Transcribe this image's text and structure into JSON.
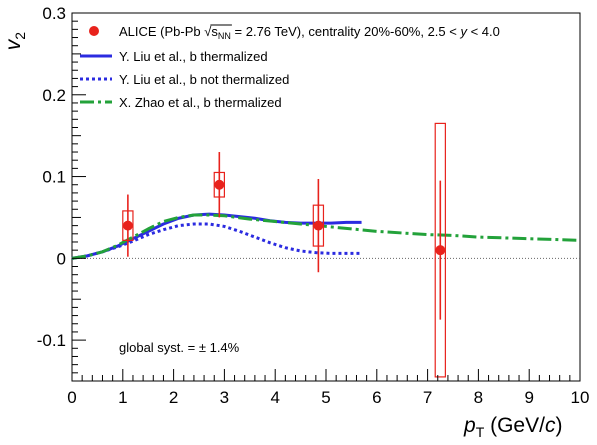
{
  "chart_data": {
    "type": "scatter",
    "title": "",
    "xlabel": "p_T (GeV/c)",
    "ylabel": "v_2",
    "xlim": [
      0,
      10
    ],
    "ylim": [
      -0.15,
      0.3
    ],
    "x_ticks": [
      0,
      1,
      2,
      3,
      4,
      5,
      6,
      7,
      8,
      9,
      10
    ],
    "y_ticks": [
      -0.1,
      0,
      0.1,
      0.2,
      0.3
    ],
    "x_tick_labels": [
      "0",
      "1",
      "2",
      "3",
      "4",
      "5",
      "6",
      "7",
      "8",
      "9",
      "10"
    ],
    "y_tick_labels": [
      "-0.1",
      "0",
      "0.1",
      "0.2",
      "0.3"
    ],
    "grid": false,
    "legend_placement": "top",
    "zero_line": true,
    "data_series": {
      "name": "ALICE (Pb-Pb √sNN = 2.76 TeV), centrality 20%-60%, 2.5 < y < 4.0",
      "color": "#e8221c",
      "points": [
        {
          "x": 1.1,
          "y": 0.04,
          "stat_err": 0.038,
          "syst_err": 0.018,
          "x_halfwidth": 0.1
        },
        {
          "x": 2.9,
          "y": 0.09,
          "stat_err": 0.04,
          "syst_err": 0.015,
          "x_halfwidth": 0.1
        },
        {
          "x": 4.85,
          "y": 0.04,
          "stat_err": 0.057,
          "syst_err": 0.025,
          "x_halfwidth": 0.1
        },
        {
          "x": 7.25,
          "y": 0.01,
          "stat_err": 0.085,
          "syst_err": 0.155,
          "x_halfwidth": 0.1
        }
      ]
    },
    "series": [
      {
        "name": "Y. Liu et al., b thermalized",
        "style": "solid",
        "color": "#2b2be0",
        "x": [
          0,
          0.3,
          0.6,
          0.9,
          1.2,
          1.5,
          1.8,
          2.1,
          2.4,
          2.7,
          3.0,
          3.3,
          3.6,
          3.9,
          4.2,
          4.5,
          4.8,
          5.1,
          5.4,
          5.7
        ],
        "y": [
          0,
          0.003,
          0.008,
          0.015,
          0.024,
          0.033,
          0.042,
          0.049,
          0.053,
          0.054,
          0.053,
          0.051,
          0.049,
          0.046,
          0.044,
          0.043,
          0.043,
          0.043,
          0.044,
          0.044
        ]
      },
      {
        "name": "Y. Liu et al., b not thermalized",
        "style": "dotted",
        "color": "#2b2be0",
        "x": [
          0,
          0.3,
          0.6,
          0.9,
          1.2,
          1.5,
          1.8,
          2.1,
          2.4,
          2.7,
          3.0,
          3.3,
          3.6,
          3.9,
          4.2,
          4.5,
          4.8,
          5.1,
          5.4,
          5.7
        ],
        "y": [
          0,
          0.003,
          0.008,
          0.014,
          0.021,
          0.029,
          0.035,
          0.04,
          0.042,
          0.042,
          0.039,
          0.033,
          0.026,
          0.019,
          0.013,
          0.009,
          0.007,
          0.006,
          0.006,
          0.006
        ]
      },
      {
        "name": "X. Zhao et al., b thermalized",
        "style": "dashdot",
        "color": "#23a23a",
        "x": [
          0,
          0.3,
          0.6,
          0.9,
          1.2,
          1.5,
          1.8,
          2.1,
          2.4,
          2.7,
          3.0,
          3.5,
          4.0,
          4.5,
          5.0,
          5.5,
          6.0,
          6.5,
          7.0,
          7.5,
          8.0,
          8.5,
          9.0,
          9.5,
          10.0
        ],
        "y": [
          0,
          0.003,
          0.008,
          0.016,
          0.026,
          0.036,
          0.045,
          0.05,
          0.053,
          0.053,
          0.052,
          0.048,
          0.045,
          0.042,
          0.039,
          0.036,
          0.033,
          0.031,
          0.029,
          0.028,
          0.026,
          0.025,
          0.024,
          0.023,
          0.022
        ]
      }
    ],
    "annotations": {
      "global_syst": "global syst. = ± 1.4%"
    }
  },
  "legend": {
    "data_text_prefix": "ALICE (Pb-Pb ",
    "sqrt_sub": "NN",
    "data_text_suffix": " = 2.76 TeV), centrality 20%-60%, 2.5 < ",
    "y_symbol": "y",
    "data_text_end": " < 4.0",
    "line1": "Y. Liu et al., b thermalized",
    "line2": "Y. Liu et al., b not thermalized",
    "line3": "X. Zhao et al., b thermalized"
  },
  "axis_titles": {
    "x_main": "p",
    "x_sub": "T",
    "x_units_prefix": " (GeV/",
    "x_units_c": "c",
    "x_units_suffix": ")",
    "y_main": "v",
    "y_sub": "2"
  }
}
